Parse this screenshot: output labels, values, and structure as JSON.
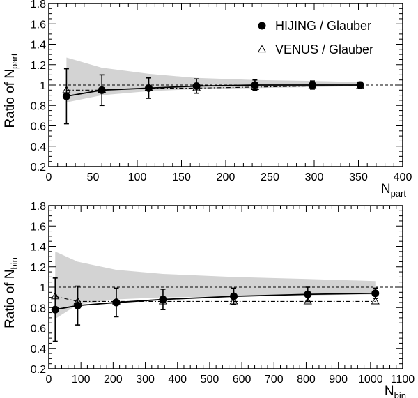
{
  "chart_data": [
    {
      "type": "scatter",
      "ylabel_main": "Ratio of N",
      "ylabel_sub": "part",
      "xlabel_main": "N",
      "xlabel_sub": "part",
      "xlim": [
        0,
        400
      ],
      "ylim": [
        0.2,
        1.8
      ],
      "xticks": [
        0,
        50,
        100,
        150,
        200,
        250,
        300,
        350,
        400
      ],
      "yticks": [
        0.2,
        0.4,
        0.6,
        0.8,
        1.0,
        1.2,
        1.4,
        1.6,
        1.8
      ],
      "ytick_labels": [
        "0.2",
        "0.4",
        "0.6",
        "0.8",
        "1",
        "1.2",
        "1.4",
        "1.6",
        "1.8"
      ],
      "reference_line": 1.0,
      "legend": [
        "HIJING / Glauber",
        "VENUS / Glauber"
      ],
      "legend_position": "top-right",
      "band": {
        "x": [
          20,
          60,
          113,
          167,
          233,
          298,
          352
        ],
        "upper": [
          1.27,
          1.17,
          1.11,
          1.07,
          1.05,
          1.04,
          1.03
        ],
        "lower": [
          0.83,
          0.9,
          0.94,
          0.96,
          0.97,
          0.98,
          0.99
        ]
      },
      "series": [
        {
          "name": "HIJING / Glauber",
          "marker": "filled-circle",
          "line": "solid",
          "x": [
            20,
            60,
            113,
            167,
            233,
            298,
            352
          ],
          "y": [
            0.89,
            0.95,
            0.97,
            0.99,
            1.0,
            1.0,
            1.0
          ],
          "err": [
            0.27,
            0.15,
            0.1,
            0.07,
            0.05,
            0.04,
            0.03
          ]
        },
        {
          "name": "VENUS / Glauber",
          "marker": "open-triangle",
          "line": "dash-dot",
          "x": [
            20,
            60,
            113,
            167,
            233,
            298,
            352
          ],
          "y": [
            0.95,
            0.95,
            0.97,
            0.97,
            0.98,
            0.99,
            0.99
          ]
        }
      ]
    },
    {
      "type": "scatter",
      "ylabel_main": "Ratio of N",
      "ylabel_sub": "bin",
      "xlabel_main": "N",
      "xlabel_sub": "bin",
      "xlim": [
        0,
        1100
      ],
      "ylim": [
        0.2,
        1.8
      ],
      "xticks": [
        0,
        100,
        200,
        300,
        400,
        500,
        600,
        700,
        800,
        900,
        1000,
        1100
      ],
      "yticks": [
        0.2,
        0.4,
        0.6,
        0.8,
        1.0,
        1.2,
        1.4,
        1.6,
        1.8
      ],
      "ytick_labels": [
        "0.2",
        "0.4",
        "0.6",
        "0.8",
        "1",
        "1.2",
        "1.4",
        "1.6",
        "1.8"
      ],
      "reference_line": 1.0,
      "band": {
        "x": [
          20,
          90,
          210,
          355,
          575,
          805,
          1015
        ],
        "upper": [
          1.35,
          1.25,
          1.17,
          1.13,
          1.1,
          1.08,
          1.06
        ],
        "lower": [
          0.69,
          0.83,
          0.88,
          0.9,
          0.91,
          0.92,
          0.93
        ]
      },
      "series": [
        {
          "name": "HIJING / Glauber",
          "marker": "filled-circle",
          "line": "solid",
          "x": [
            20,
            90,
            210,
            355,
            575,
            805,
            1015
          ],
          "y": [
            0.78,
            0.82,
            0.85,
            0.88,
            0.91,
            0.93,
            0.94
          ],
          "err": [
            0.31,
            0.19,
            0.14,
            0.1,
            0.08,
            0.07,
            0.05
          ]
        },
        {
          "name": "VENUS / Glauber",
          "marker": "open-triangle",
          "line": "dash-dot",
          "x": [
            20,
            90,
            210,
            355,
            575,
            805,
            1015
          ],
          "y": [
            0.91,
            0.86,
            0.86,
            0.86,
            0.86,
            0.86,
            0.86
          ]
        }
      ]
    }
  ]
}
